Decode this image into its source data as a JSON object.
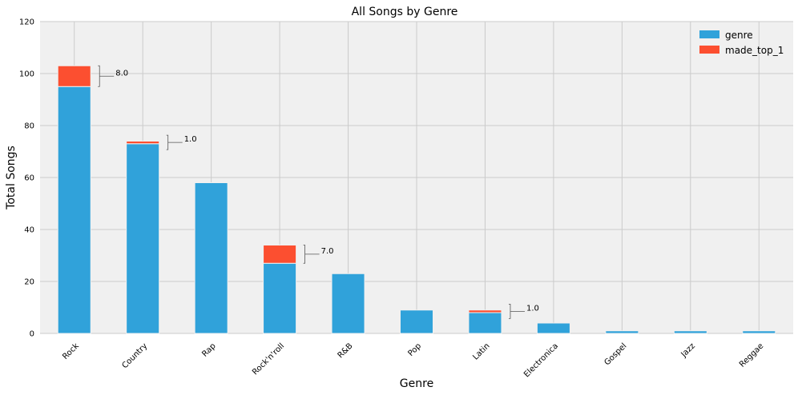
{
  "chart_data": {
    "type": "bar",
    "stacked": true,
    "title": "All Songs by Genre",
    "xlabel": "Genre",
    "ylabel": "Total Songs",
    "ylim": [
      0,
      120
    ],
    "yticks": [
      "0",
      "20",
      "40",
      "60",
      "80",
      "100",
      "120"
    ],
    "grid": true,
    "legend_position": "top-right",
    "categories": [
      "Rock",
      "Country",
      "Rap",
      "Rock'n'roll",
      "R&B",
      "Pop",
      "Latin",
      "Electronica",
      "Gospel",
      "Jazz",
      "Reggae"
    ],
    "series": [
      {
        "name": "genre",
        "color": "#30a2da",
        "values": [
          95,
          73,
          58,
          27,
          23,
          9,
          8,
          4,
          1,
          1,
          1
        ]
      },
      {
        "name": "made_top_1",
        "color": "#fc4f30",
        "values": [
          8,
          1,
          0,
          7,
          0,
          0,
          1,
          0,
          0,
          0,
          0
        ]
      }
    ],
    "annotations": [
      {
        "category": "Rock",
        "text": "8.0"
      },
      {
        "category": "Country",
        "text": "1.0"
      },
      {
        "category": "Rock'n'roll",
        "text": "7.0"
      },
      {
        "category": "Latin",
        "text": "1.0"
      }
    ],
    "background_color": "#f0f0f0",
    "grid_color": "#cbcbcb"
  }
}
